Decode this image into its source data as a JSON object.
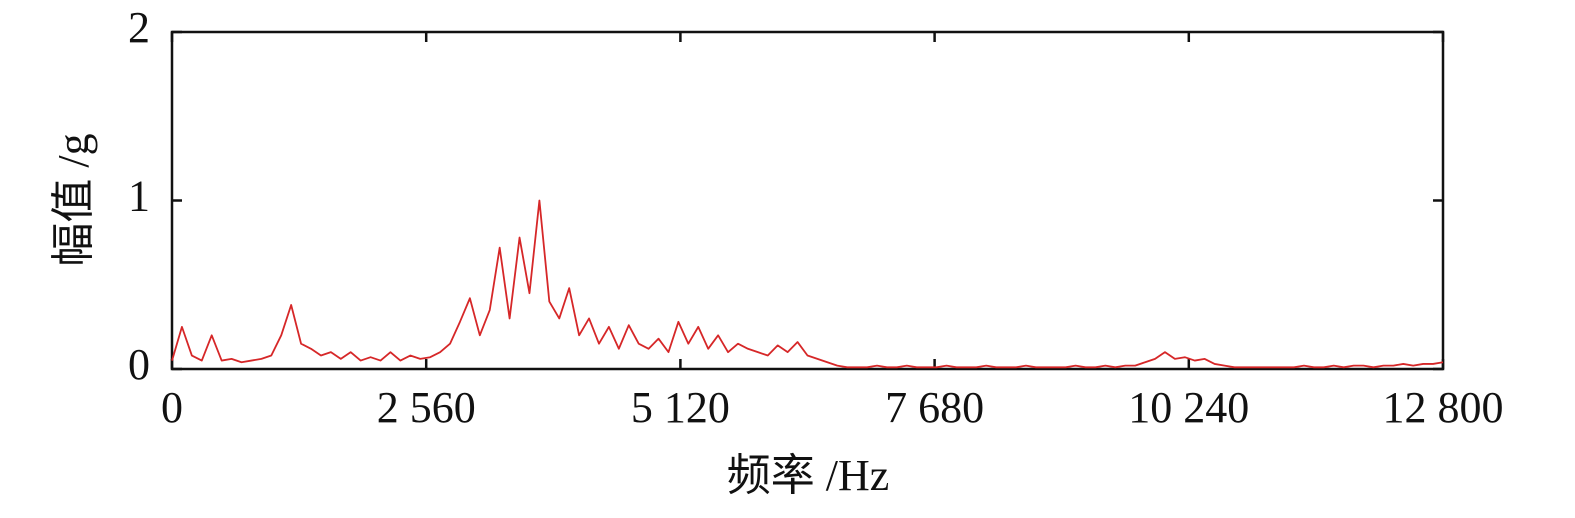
{
  "chart_data": {
    "type": "line",
    "xlabel": "频率 /Hz",
    "ylabel": "幅值 /g",
    "color": "#d62728",
    "xlim": [
      0,
      12800
    ],
    "ylim": [
      0,
      2
    ],
    "xticks": [
      0,
      {
        "value": 2560,
        "label": "2 560"
      },
      {
        "value": 5120,
        "label": "5 120"
      },
      {
        "value": 7680,
        "label": "7 680"
      },
      {
        "value": 10240,
        "label": "10 240"
      },
      {
        "value": 12800,
        "label": "12 800"
      }
    ],
    "yticks": [
      0,
      1,
      2
    ],
    "x": [
      0,
      100,
      200,
      300,
      400,
      500,
      600,
      700,
      800,
      900,
      1000,
      1100,
      1200,
      1300,
      1400,
      1500,
      1600,
      1700,
      1800,
      1900,
      2000,
      2100,
      2200,
      2300,
      2400,
      2500,
      2600,
      2700,
      2800,
      2900,
      3000,
      3100,
      3200,
      3300,
      3400,
      3500,
      3600,
      3700,
      3800,
      3900,
      4000,
      4100,
      4200,
      4300,
      4400,
      4500,
      4600,
      4700,
      4800,
      4900,
      5000,
      5100,
      5200,
      5300,
      5400,
      5500,
      5600,
      5700,
      5800,
      5900,
      6000,
      6100,
      6200,
      6300,
      6400,
      6500,
      6600,
      6700,
      6800,
      6900,
      7000,
      7100,
      7200,
      7300,
      7400,
      7500,
      7600,
      7700,
      7800,
      7900,
      8000,
      8100,
      8200,
      8300,
      8400,
      8500,
      8600,
      8700,
      8800,
      8900,
      9000,
      9100,
      9200,
      9300,
      9400,
      9500,
      9600,
      9700,
      9800,
      9900,
      10000,
      10100,
      10200,
      10300,
      10400,
      10500,
      10600,
      10700,
      10800,
      10900,
      11000,
      11100,
      11200,
      11300,
      11400,
      11500,
      11600,
      11700,
      11800,
      11900,
      12000,
      12100,
      12200,
      12300,
      12400,
      12500,
      12600,
      12700,
      12800
    ],
    "values": [
      0.05,
      0.25,
      0.08,
      0.05,
      0.2,
      0.05,
      0.06,
      0.04,
      0.05,
      0.06,
      0.08,
      0.2,
      0.38,
      0.15,
      0.12,
      0.08,
      0.1,
      0.06,
      0.1,
      0.05,
      0.07,
      0.05,
      0.1,
      0.05,
      0.08,
      0.06,
      0.07,
      0.1,
      0.15,
      0.28,
      0.42,
      0.2,
      0.35,
      0.72,
      0.3,
      0.78,
      0.45,
      1.0,
      0.4,
      0.3,
      0.48,
      0.2,
      0.3,
      0.15,
      0.25,
      0.12,
      0.26,
      0.15,
      0.12,
      0.18,
      0.1,
      0.28,
      0.15,
      0.25,
      0.12,
      0.2,
      0.1,
      0.15,
      0.12,
      0.1,
      0.08,
      0.14,
      0.1,
      0.16,
      0.08,
      0.06,
      0.04,
      0.02,
      0.01,
      0.01,
      0.01,
      0.02,
      0.01,
      0.01,
      0.02,
      0.01,
      0.01,
      0.01,
      0.02,
      0.01,
      0.01,
      0.01,
      0.02,
      0.01,
      0.01,
      0.01,
      0.02,
      0.01,
      0.01,
      0.01,
      0.01,
      0.02,
      0.01,
      0.01,
      0.02,
      0.01,
      0.02,
      0.02,
      0.04,
      0.06,
      0.1,
      0.06,
      0.07,
      0.05,
      0.06,
      0.03,
      0.02,
      0.01,
      0.01,
      0.01,
      0.01,
      0.01,
      0.01,
      0.01,
      0.02,
      0.01,
      0.01,
      0.02,
      0.01,
      0.02,
      0.02,
      0.01,
      0.02,
      0.02,
      0.03,
      0.02,
      0.03,
      0.03,
      0.04
    ]
  }
}
